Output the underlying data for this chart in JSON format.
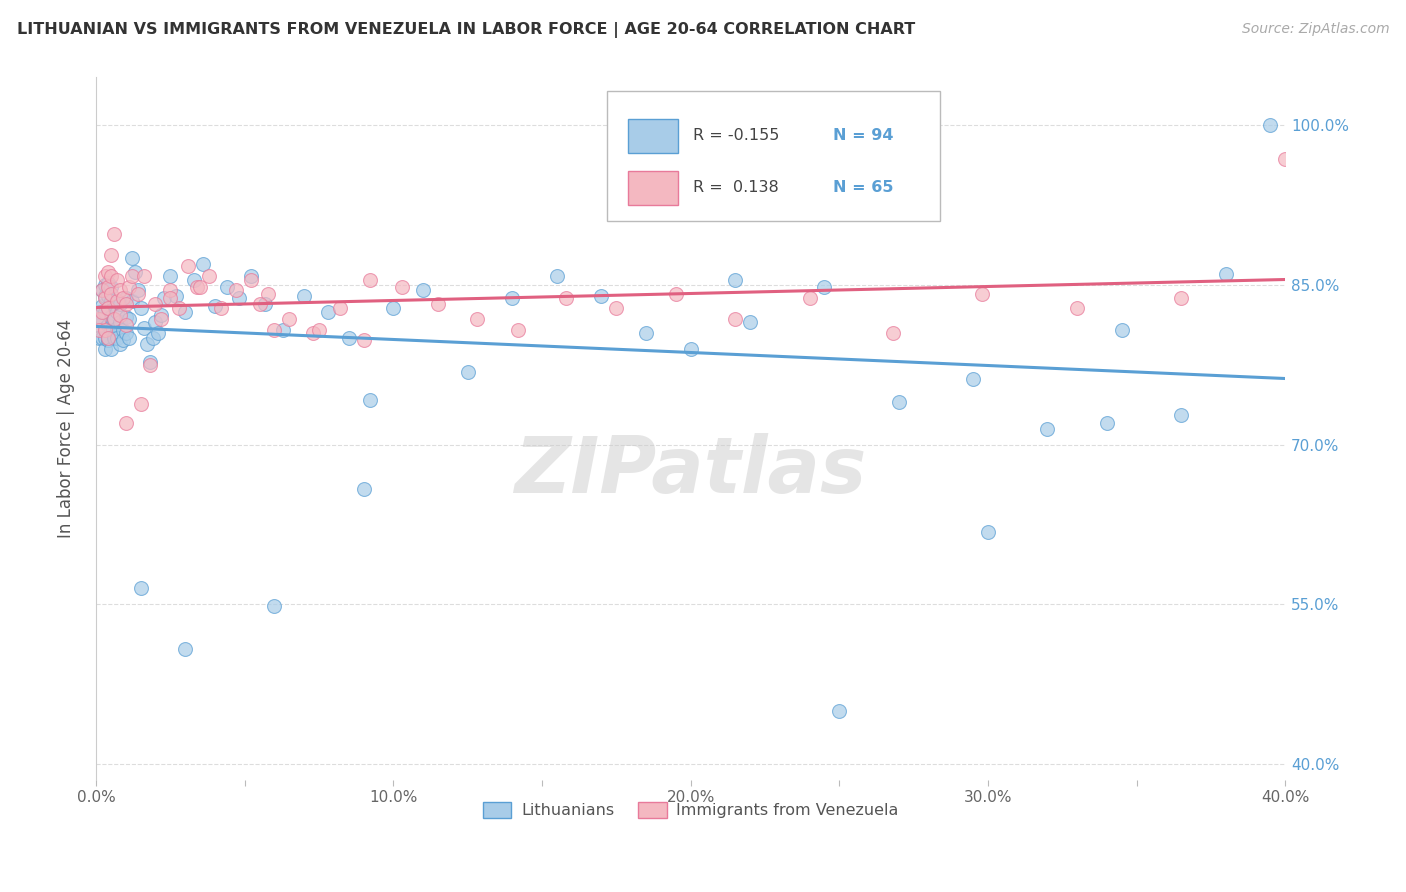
{
  "title": "LITHUANIAN VS IMMIGRANTS FROM VENEZUELA IN LABOR FORCE | AGE 20-64 CORRELATION CHART",
  "source": "Source: ZipAtlas.com",
  "ylabel": "In Labor Force | Age 20-64",
  "xmin": 0.0,
  "xmax": 0.4,
  "ymin": 0.385,
  "ymax": 1.045,
  "blue_R": -0.155,
  "blue_N": 94,
  "pink_R": 0.138,
  "pink_N": 65,
  "blue_color": "#a8cce8",
  "pink_color": "#f4b8c1",
  "blue_edge_color": "#5a9fd4",
  "pink_edge_color": "#e87a9a",
  "blue_line_color": "#5a9fd4",
  "pink_line_color": "#e06080",
  "grid_color": "#dddddd",
  "background_color": "#ffffff",
  "watermark": "ZIPatlas",
  "legend_label_blue": "Lithuanians",
  "legend_label_pink": "Immigrants from Venezuela",
  "ytick_vals": [
    0.4,
    0.55,
    0.7,
    0.85,
    1.0
  ],
  "ytick_labels": [
    "40.0%",
    "55.0%",
    "70.0%",
    "85.0%",
    "100.0%"
  ],
  "xtick_vals": [
    0.0,
    0.05,
    0.1,
    0.15,
    0.2,
    0.25,
    0.3,
    0.35,
    0.4
  ],
  "xtick_labels": [
    "0.0%",
    "",
    "10.0%",
    "",
    "20.0%",
    "",
    "30.0%",
    "",
    "40.0%"
  ],
  "blue_scatter_x": [
    0.001,
    0.001,
    0.001,
    0.002,
    0.002,
    0.002,
    0.002,
    0.003,
    0.003,
    0.003,
    0.003,
    0.003,
    0.003,
    0.004,
    0.004,
    0.004,
    0.004,
    0.004,
    0.004,
    0.005,
    0.005,
    0.005,
    0.005,
    0.005,
    0.006,
    0.006,
    0.006,
    0.006,
    0.007,
    0.007,
    0.007,
    0.008,
    0.008,
    0.008,
    0.009,
    0.009,
    0.01,
    0.01,
    0.01,
    0.011,
    0.011,
    0.012,
    0.012,
    0.013,
    0.014,
    0.015,
    0.016,
    0.017,
    0.018,
    0.019,
    0.02,
    0.021,
    0.022,
    0.023,
    0.025,
    0.027,
    0.03,
    0.033,
    0.036,
    0.04,
    0.044,
    0.048,
    0.052,
    0.057,
    0.063,
    0.07,
    0.078,
    0.085,
    0.092,
    0.1,
    0.11,
    0.125,
    0.14,
    0.155,
    0.17,
    0.185,
    0.2,
    0.22,
    0.245,
    0.27,
    0.295,
    0.32,
    0.345,
    0.365,
    0.38,
    0.395,
    0.215,
    0.25,
    0.3,
    0.34,
    0.015,
    0.03,
    0.06,
    0.09
  ],
  "blue_scatter_y": [
    0.812,
    0.825,
    0.8,
    0.83,
    0.818,
    0.845,
    0.8,
    0.79,
    0.81,
    0.825,
    0.84,
    0.85,
    0.8,
    0.798,
    0.812,
    0.828,
    0.84,
    0.852,
    0.8,
    0.79,
    0.808,
    0.82,
    0.835,
    0.848,
    0.802,
    0.818,
    0.832,
    0.8,
    0.81,
    0.825,
    0.8,
    0.795,
    0.815,
    0.832,
    0.808,
    0.798,
    0.805,
    0.82,
    0.838,
    0.8,
    0.818,
    0.835,
    0.875,
    0.862,
    0.845,
    0.828,
    0.81,
    0.795,
    0.778,
    0.8,
    0.815,
    0.805,
    0.822,
    0.838,
    0.858,
    0.84,
    0.825,
    0.855,
    0.87,
    0.83,
    0.848,
    0.838,
    0.858,
    0.832,
    0.808,
    0.84,
    0.825,
    0.8,
    0.742,
    0.828,
    0.845,
    0.768,
    0.838,
    0.858,
    0.84,
    0.805,
    0.79,
    0.815,
    0.848,
    0.74,
    0.762,
    0.715,
    0.808,
    0.728,
    0.86,
    1.0,
    0.855,
    0.45,
    0.618,
    0.72,
    0.565,
    0.508,
    0.548,
    0.658
  ],
  "pink_scatter_x": [
    0.001,
    0.001,
    0.002,
    0.002,
    0.003,
    0.003,
    0.003,
    0.004,
    0.004,
    0.004,
    0.004,
    0.005,
    0.005,
    0.005,
    0.006,
    0.006,
    0.007,
    0.007,
    0.008,
    0.008,
    0.009,
    0.01,
    0.01,
    0.011,
    0.012,
    0.014,
    0.016,
    0.018,
    0.02,
    0.022,
    0.025,
    0.028,
    0.031,
    0.034,
    0.038,
    0.042,
    0.047,
    0.052,
    0.058,
    0.065,
    0.073,
    0.082,
    0.092,
    0.103,
    0.115,
    0.128,
    0.142,
    0.158,
    0.175,
    0.195,
    0.215,
    0.24,
    0.268,
    0.298,
    0.33,
    0.365,
    0.4,
    0.015,
    0.035,
    0.055,
    0.075,
    0.01,
    0.025,
    0.06,
    0.09
  ],
  "pink_scatter_y": [
    0.818,
    0.808,
    0.825,
    0.845,
    0.838,
    0.858,
    0.808,
    0.848,
    0.828,
    0.862,
    0.8,
    0.842,
    0.858,
    0.878,
    0.818,
    0.898,
    0.835,
    0.855,
    0.822,
    0.845,
    0.838,
    0.812,
    0.832,
    0.848,
    0.858,
    0.842,
    0.858,
    0.775,
    0.832,
    0.818,
    0.845,
    0.828,
    0.868,
    0.848,
    0.858,
    0.828,
    0.845,
    0.855,
    0.842,
    0.818,
    0.805,
    0.828,
    0.855,
    0.848,
    0.832,
    0.818,
    0.808,
    0.838,
    0.828,
    0.842,
    0.818,
    0.838,
    0.805,
    0.842,
    0.828,
    0.838,
    0.968,
    0.738,
    0.848,
    0.832,
    0.808,
    0.72,
    0.838,
    0.808,
    0.798
  ]
}
